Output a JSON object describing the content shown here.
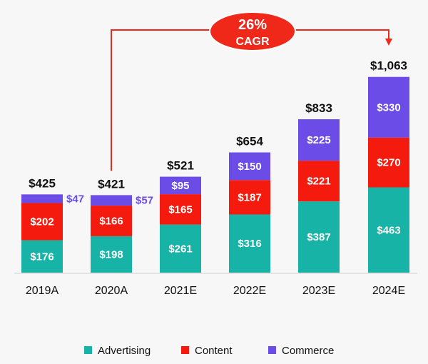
{
  "chart_data": {
    "type": "bar",
    "stacked": true,
    "categories": [
      "2019A",
      "2020A",
      "2021E",
      "2022E",
      "2023E",
      "2024E"
    ],
    "series": [
      {
        "name": "Advertising",
        "color": "#17b3a7",
        "values": [
          176,
          198,
          261,
          316,
          387,
          463
        ],
        "labels": [
          "$176",
          "$198",
          "$261",
          "$316",
          "$387",
          "$463"
        ]
      },
      {
        "name": "Content",
        "color": "#f51a0e",
        "values": [
          202,
          166,
          165,
          187,
          221,
          270
        ],
        "labels": [
          "$202",
          "$166",
          "$165",
          "$187",
          "$221",
          "$270"
        ]
      },
      {
        "name": "Commerce",
        "color": "#6b4ce6",
        "values": [
          47,
          57,
          95,
          150,
          225,
          330
        ],
        "labels": [
          "$47",
          "$57",
          "$95",
          "$150",
          "$225",
          "$330"
        ]
      }
    ],
    "totals": [
      425,
      421,
      521,
      654,
      833,
      1063
    ],
    "total_labels": [
      "$425",
      "$421",
      "$521",
      "$654",
      "$833",
      "$1,063"
    ],
    "ylim": [
      0,
      1100
    ],
    "grid": false,
    "legend_position": "bottom",
    "annotation": {
      "line1": "26%",
      "line2": "CAGR",
      "from": "2020A",
      "to": "2024E",
      "color": "#f0281a"
    }
  }
}
